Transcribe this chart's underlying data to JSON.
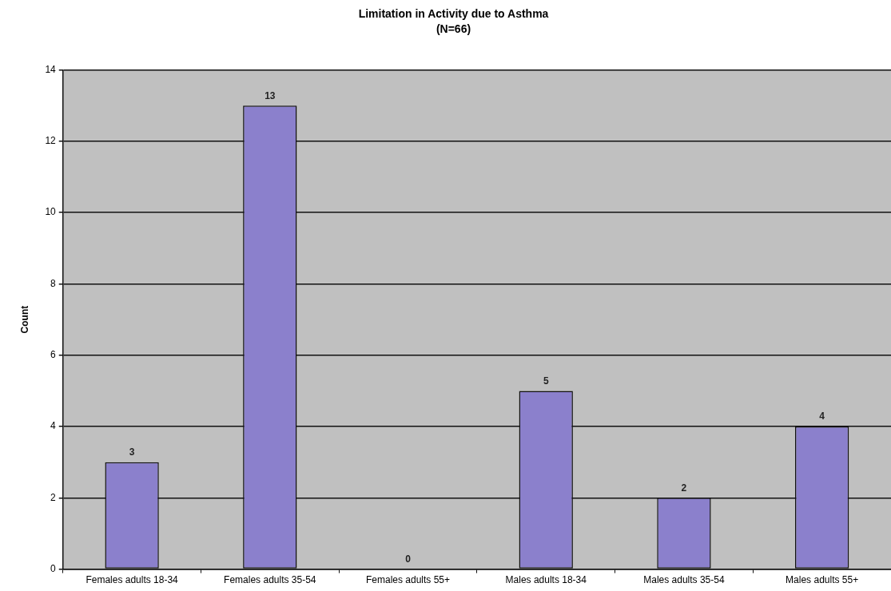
{
  "chart_data": {
    "type": "bar",
    "title": "Limitation in Activity due to Asthma",
    "subtitle": "(N=66)",
    "ylabel": "Count",
    "categories": [
      "Females adults 18-34",
      "Females adults 35-54",
      "Females adults 55+",
      "Males adults 18-34",
      "Males adults 35-54",
      "Males adults 55+"
    ],
    "values": [
      3,
      13,
      0,
      5,
      2,
      4
    ],
    "color": "#8b80cc",
    "ylim": [
      0,
      14
    ],
    "yticks": [
      0,
      2,
      4,
      6,
      8,
      10,
      12,
      14
    ],
    "grid": "y",
    "data_labels": true
  }
}
